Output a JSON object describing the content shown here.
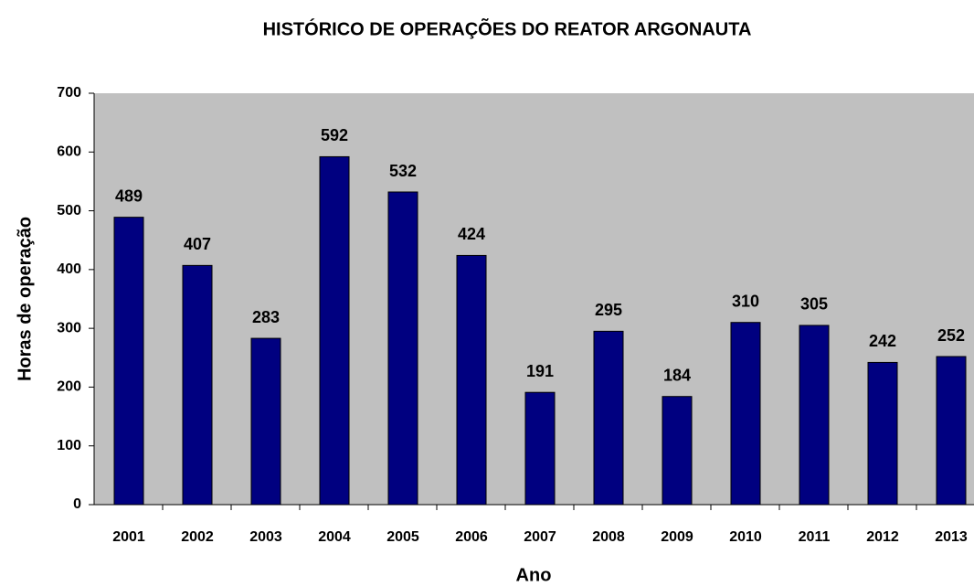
{
  "chart_data": {
    "type": "bar",
    "title": "HISTÓRICO DE OPERAÇÕES DO REATOR ARGONAUTA",
    "x_label": "Ano",
    "y_label": "Horas de operação",
    "categories": [
      "2001",
      "2002",
      "2003",
      "2004",
      "2005",
      "2006",
      "2007",
      "2008",
      "2009",
      "2010",
      "2011",
      "2012",
      "2013"
    ],
    "values": [
      489,
      407,
      283,
      592,
      532,
      424,
      191,
      295,
      184,
      310,
      305,
      242,
      252
    ],
    "color": "#000080",
    "background": "#c0c0c0",
    "ylim": [
      0,
      700
    ],
    "yticks": [
      0,
      100,
      200,
      300,
      400,
      500,
      600,
      700
    ],
    "grid": false
  }
}
